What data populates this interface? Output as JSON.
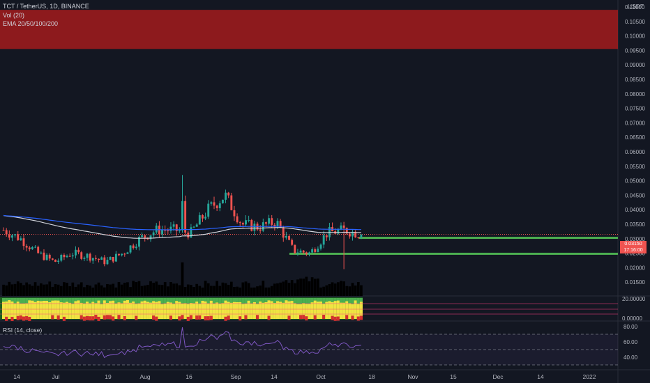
{
  "header": {
    "symbol_line": "TCT / TetherUS, 1D, BINANCE",
    "vol_line": "Vol (20)",
    "ema_line": "EMA 20/50/100/200"
  },
  "price_axis": {
    "unit": "USDT",
    "labels": [
      "0.11000",
      "0.10500",
      "0.10000",
      "0.09500",
      "0.09000",
      "0.08500",
      "0.08000",
      "0.07500",
      "0.07000",
      "0.06500",
      "0.06000",
      "0.05500",
      "0.05000",
      "0.04500",
      "0.04000",
      "0.03500",
      "0.03000",
      "0.02500",
      "0.02000",
      "0.01500"
    ],
    "current_price": "0.03150",
    "countdown": "17:16:00"
  },
  "indicator_axis": [
    "20.00000",
    "0.00000"
  ],
  "rsi": {
    "label": "RSI (14, close)",
    "axis": [
      "80.00",
      "60.00",
      "40.00"
    ]
  },
  "time_axis": [
    "14",
    "Jul",
    "19",
    "Aug",
    "16",
    "Sep",
    "14",
    "Oct",
    "18",
    "Nov",
    "15",
    "Dec",
    "14",
    "2022"
  ],
  "zones": {
    "resistance": {
      "from": 0.0955,
      "to": 0.109
    },
    "support_lines": [
      0.0303,
      0.0248
    ]
  },
  "colors": {
    "up": "#26a69a",
    "down": "#ef5350",
    "zone": "#b71c1c",
    "support": "#4caf50",
    "ema_white": "#d1d4dc",
    "ema_blue": "#2962ff",
    "rsi_line": "#7e57c2"
  },
  "chart_data": {
    "type": "candlestick",
    "x": [
      "14",
      "Jul",
      "19",
      "Aug",
      "16",
      "Sep",
      "14",
      "Oct"
    ],
    "y_range": [
      0.0125,
      0.119
    ],
    "last_close": 0.0315,
    "closes_approx": [
      0.033,
      0.03,
      0.025,
      0.022,
      0.025,
      0.024,
      0.022,
      0.025,
      0.03,
      0.033,
      0.033,
      0.032,
      0.04,
      0.045,
      0.035,
      0.034,
      0.036,
      0.026,
      0.025,
      0.032,
      0.033,
      0.0315
    ]
  },
  "sidebar": {
    "lock_label": ""
  }
}
